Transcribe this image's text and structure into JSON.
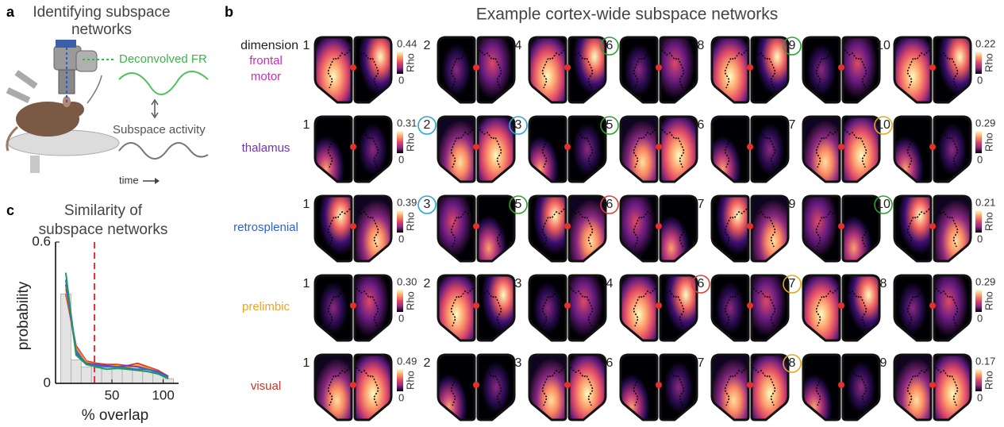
{
  "panel_a": {
    "letter": "a",
    "title_lines": [
      "Identifying subspace",
      "networks"
    ],
    "signal_label": "Deconvolved FR",
    "activity_label": "Subspace activity",
    "time_label": "time"
  },
  "panel_b": {
    "letter": "b",
    "title": "Example cortex-wide subspace networks",
    "dimension_label": "dimension",
    "colorbar_label": "Rho",
    "rows": [
      {
        "region_lines": [
          "frontal",
          "motor"
        ],
        "color": "#c42fb8",
        "dimensions": [
          1,
          2,
          4,
          6,
          8,
          9,
          10
        ],
        "circle_colors": [
          null,
          null,
          null,
          "#2ca02c",
          null,
          "#2ca02c",
          null
        ],
        "left_colorbar": [
          0,
          0.44
        ],
        "right_colorbar": [
          0,
          0.22
        ]
      },
      {
        "region_lines": [
          "thalamus"
        ],
        "color": "#6f35b0",
        "dimensions": [
          1,
          2,
          3,
          5,
          6,
          7,
          10
        ],
        "circle_colors": [
          null,
          "#2aa4d8",
          "#2aa4d8",
          "#2ca02c",
          null,
          null,
          "#e0a81c"
        ],
        "left_colorbar": [
          0,
          0.31
        ],
        "right_colorbar": [
          0,
          0.29
        ]
      },
      {
        "region_lines": [
          "retrosplenial"
        ],
        "color": "#2f5fd6",
        "dimensions": [
          1,
          3,
          5,
          6,
          7,
          9,
          10
        ],
        "circle_colors": [
          null,
          "#2aa4d8",
          "#2ca02c",
          "#d8403a",
          null,
          null,
          "#2ca02c"
        ],
        "left_colorbar": [
          0,
          0.39
        ],
        "right_colorbar": [
          0,
          0.21
        ]
      },
      {
        "region_lines": [
          "prelimbic"
        ],
        "color": "#f3a21e",
        "dimensions": [
          1,
          2,
          3,
          4,
          6,
          7,
          8
        ],
        "circle_colors": [
          null,
          null,
          null,
          null,
          "#d8403a",
          "#e0a81c",
          null
        ],
        "left_colorbar": [
          0,
          {
            "value": 0.3,
            "label": "0.30"
          }
        ],
        "right_colorbar": [
          0,
          0.29
        ]
      },
      {
        "region_lines": [
          "visual"
        ],
        "color": "#c0392b",
        "dimensions": [
          1,
          2,
          3,
          6,
          7,
          8,
          9
        ],
        "circle_colors": [
          null,
          null,
          null,
          null,
          null,
          "#e0a81c",
          null
        ],
        "left_colorbar": [
          0,
          0.49
        ],
        "right_colorbar": [
          0,
          0.17
        ]
      }
    ]
  },
  "panel_c": {
    "letter": "c",
    "title_lines": [
      "Similarity of",
      "subspace networks"
    ]
  },
  "chart_data": {
    "type": "histogram",
    "xlabel": "% overlap",
    "ylabel": "probability",
    "xlim": [
      -5,
      115
    ],
    "ylim": [
      0,
      0.6
    ],
    "xticks": [
      50,
      100
    ],
    "yticks": [
      0,
      0.6
    ],
    "bins": [
      0,
      10,
      20,
      30,
      40,
      50,
      60,
      70,
      80,
      90,
      100,
      110
    ],
    "counts": [
      0.38,
      0.1,
      0.07,
      0.065,
      0.06,
      0.06,
      0.06,
      0.06,
      0.055,
      0.045,
      0.02
    ],
    "bar_color": "#e3e3e3",
    "threshold": 33,
    "threshold_color": "#e03030",
    "x": [
      5,
      15,
      25,
      35,
      45,
      55,
      65,
      75,
      85,
      95,
      105
    ],
    "series": [
      {
        "color": "#e03b2a",
        "values": [
          0.38,
          0.16,
          0.095,
          0.085,
          0.08,
          0.08,
          0.075,
          0.085,
          0.07,
          0.055,
          0.03
        ]
      },
      {
        "color": "#f2a31c",
        "values": [
          0.4,
          0.15,
          0.09,
          0.08,
          0.07,
          0.075,
          0.07,
          0.075,
          0.065,
          0.05,
          0.03
        ]
      },
      {
        "color": "#7a3bb5",
        "values": [
          0.42,
          0.13,
          0.085,
          0.08,
          0.075,
          0.07,
          0.075,
          0.07,
          0.06,
          0.05,
          0.03
        ]
      },
      {
        "color": "#2f6fd6",
        "values": [
          0.44,
          0.14,
          0.08,
          0.075,
          0.07,
          0.07,
          0.065,
          0.06,
          0.06,
          0.045,
          0.025
        ]
      },
      {
        "color": "#1f9a5a",
        "values": [
          0.47,
          0.12,
          0.08,
          0.07,
          0.06,
          0.065,
          0.06,
          0.055,
          0.05,
          0.04,
          0.02
        ]
      }
    ]
  }
}
